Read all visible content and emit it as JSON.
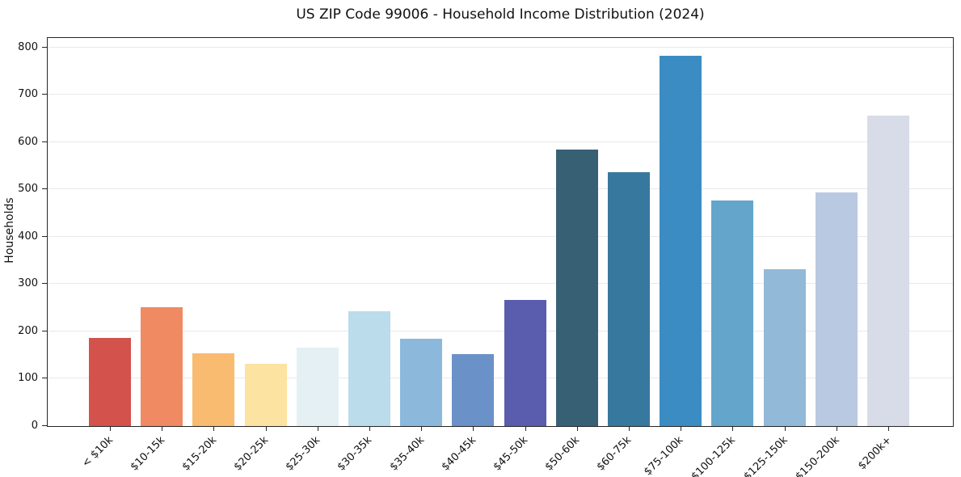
{
  "chart_data": {
    "type": "bar",
    "title": "US ZIP Code 99006 - Household Income Distribution (2024)",
    "xlabel": "",
    "ylabel": "Households",
    "ylim": [
      0,
      820
    ],
    "yticks": [
      0,
      100,
      200,
      300,
      400,
      500,
      600,
      700,
      800
    ],
    "grid": "horizontal",
    "legend": "none",
    "categories": [
      "< $10k",
      "$10-15k",
      "$15-20k",
      "$20-25k",
      "$25-30k",
      "$30-35k",
      "$35-40k",
      "$40-45k",
      "$45-50k",
      "$50-60k",
      "$60-75k",
      "$75-100k",
      "$100-125k",
      "$125-150k",
      "$150-200k",
      "$200k+"
    ],
    "values": [
      186,
      251,
      154,
      132,
      166,
      242,
      184,
      152,
      267,
      585,
      537,
      782,
      476,
      331,
      493,
      656
    ],
    "bar_colors": [
      "#d3524c",
      "#ef8a62",
      "#f9bb70",
      "#fce3a1",
      "#e4f0f4",
      "#badceb",
      "#8cb8dc",
      "#6b92c8",
      "#5a5cae",
      "#376075",
      "#37789f",
      "#3a8cc3",
      "#63a5cb",
      "#93b9d8",
      "#bac9e2",
      "#d8dbe8"
    ],
    "colors": {
      "grid": "#e9e9e9",
      "spine": "#262626",
      "text": "#111111",
      "background": "#ffffff"
    }
  }
}
